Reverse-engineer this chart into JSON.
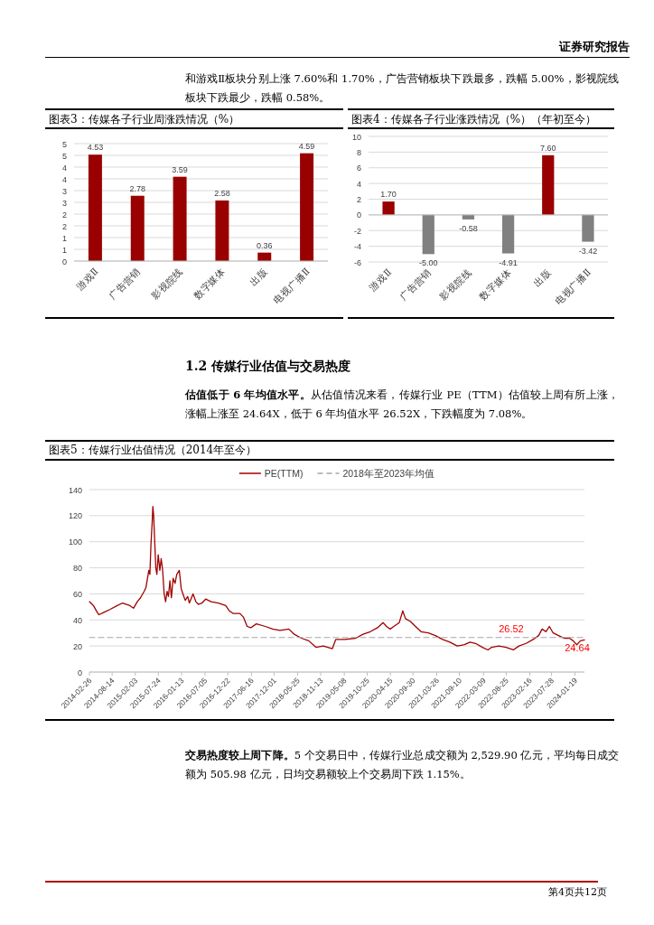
{
  "chart_data": [
    {
      "type": "bar",
      "title": "图表3：传媒各子行业周涨跌情况（%）",
      "categories": [
        "游戏Ⅱ",
        "广告营销",
        "影视院线",
        "数字媒体",
        "出版",
        "电视广播Ⅱ"
      ],
      "values": [
        4.53,
        2.78,
        3.59,
        2.58,
        0.36,
        4.59
      ],
      "value_labels": [
        "4.53",
        "2.78",
        "3.59",
        "2.58",
        "0.36",
        "4.59"
      ],
      "color": "#990000",
      "ylim": [
        0,
        5
      ],
      "yticks": [
        0,
        {
          "value": 0.5,
          "label": "1"
        },
        1,
        {
          "value": 1.5,
          "label": "2"
        },
        2,
        {
          "value": 2.5,
          "label": "3"
        },
        3,
        {
          "value": 3.5,
          "label": "4"
        },
        4,
        {
          "value": 4.5,
          "label": "5"
        },
        5
      ],
      "grid": "y",
      "annotations": [
        "证券研究报告",
        "和游戏Ⅱ板块分别上涨 7.60%和 1.70%，广告营销板块下跌最多，跌幅 5.00%，影视院线板块下跌最少，跌幅 0.58%。"
      ]
    },
    {
      "type": "bar",
      "title": "图表4：传媒各子行业涨跌情况（%）（年初至今）",
      "categories": [
        "游戏Ⅱ",
        "广告营销",
        "影视院线",
        "数字媒体",
        "出版",
        "电视广播Ⅱ"
      ],
      "values": [
        1.7,
        -5.0,
        -0.58,
        -4.91,
        7.6,
        -3.42
      ],
      "value_labels": [
        "1.70",
        "-5.00",
        "-0.58",
        "-4.91",
        "7.60",
        "-3.42"
      ],
      "colors": [
        "#990000",
        "#808080",
        "#808080",
        "#808080",
        "#990000",
        "#808080"
      ],
      "ylim": [
        -6,
        10
      ],
      "yticks": [
        -6,
        -4,
        -2,
        0,
        2,
        4,
        6,
        8,
        10
      ],
      "grid": "y"
    },
    {
      "type": "line",
      "title": "图表5：传媒行业估值情况（2014年至今）",
      "legend": "top",
      "grid": "y",
      "ylim": [
        0,
        140
      ],
      "yticks": [
        0,
        20,
        40,
        60,
        80,
        100,
        120,
        140
      ],
      "xlim": [
        "2014-02-26",
        "2024-03-29"
      ],
      "xticks": [
        "2014-02-26",
        "2014-08-14",
        "2015-02-03",
        "2015-07-24",
        "2016-01-13",
        "2016-07-05",
        "2016-12-22",
        "2017-06-16",
        "2017-12-01",
        "2018-05-25",
        "2018-11-13",
        "2019-05-08",
        "2019-10-25",
        "2020-04-15",
        "2020-09-30",
        "2021-03-26",
        "2021-09-10",
        "2022-03-09",
        "2022-08-25",
        "2023-02-16",
        "2023-07-28",
        "2024-01-19"
      ],
      "x": [
        "2014-02-26",
        "2014-03-28",
        "2014-04-24",
        "2014-05-08",
        "2014-06-17",
        "2014-07-28",
        "2014-09-21",
        "2014-10-31",
        "2014-12-24",
        "2015-01-20",
        "2015-02-17",
        "2015-03-13",
        "2015-04-10",
        "2015-04-23",
        "2015-05-14",
        "2015-05-22",
        "2015-05-30",
        "2015-06-08",
        "2015-06-13",
        "2015-06-19",
        "2015-06-27",
        "2015-07-05",
        "2015-07-13",
        "2015-07-23",
        "2015-08-04",
        "2015-08-14",
        "2015-08-25",
        "2015-09-05",
        "2015-09-16",
        "2015-09-27",
        "2015-10-07",
        "2015-10-18",
        "2015-10-29",
        "2015-11-11",
        "2015-11-25",
        "2015-12-08",
        "2015-12-27",
        "2016-01-10",
        "2016-01-23",
        "2016-02-09",
        "2016-02-27",
        "2016-03-11",
        "2016-04-07",
        "2016-04-28",
        "2016-05-17",
        "2016-06-13",
        "2016-07-10",
        "2016-08-20",
        "2016-10-13",
        "2016-12-06",
        "2017-01-02",
        "2017-01-29",
        "2017-03-22",
        "2017-04-18",
        "2017-05-15",
        "2017-06-11",
        "2017-07-22",
        "2017-09-28",
        "2017-11-21",
        "2018-01-14",
        "2018-03-21",
        "2018-04-30",
        "2018-06-23",
        "2018-08-16",
        "2018-10-09",
        "2018-12-02",
        "2019-02-08",
        "2019-03-05",
        "2019-05-12",
        "2019-08-01",
        "2019-09-24",
        "2019-11-17",
        "2020-01-10",
        "2020-02-20",
        "2020-03-17",
        "2020-04-13",
        "2020-05-10",
        "2020-06-20",
        "2020-07-16",
        "2020-08-05",
        "2020-09-09",
        "2020-10-19",
        "2020-11-29",
        "2021-01-22",
        "2021-03-16",
        "2021-05-09",
        "2021-07-02",
        "2021-08-25",
        "2021-10-18",
        "2021-11-28",
        "2022-01-08",
        "2022-03-01",
        "2022-04-11",
        "2022-05-08",
        "2022-07-01",
        "2022-08-24",
        "2022-10-17",
        "2022-11-27",
        "2023-01-20",
        "2023-03-13",
        "2023-04-23",
        "2023-05-19",
        "2023-06-16",
        "2023-07-12",
        "2023-08-09",
        "2023-09-19",
        "2023-10-29",
        "2023-12-08",
        "2024-01-05",
        "2024-02-01",
        "2024-02-28",
        "2024-03-29"
      ],
      "series": [
        {
          "name": "PE(TTM)",
          "color": "#a00000",
          "values": [
            54,
            51,
            46,
            44,
            46,
            48,
            51,
            53,
            51,
            49,
            54,
            57,
            62,
            65,
            78,
            75,
            98,
            115,
            127,
            120,
            100,
            80,
            75,
            90,
            78,
            87,
            78,
            60,
            54,
            62,
            58,
            70,
            57,
            72,
            68,
            75,
            78,
            64,
            60,
            55,
            58,
            53,
            60,
            54,
            52,
            53,
            56,
            54,
            53,
            51,
            47,
            45,
            45,
            42,
            35,
            34,
            37,
            35,
            33,
            32,
            33,
            29,
            26,
            24,
            19,
            20,
            18,
            25,
            25,
            26,
            29,
            31,
            34,
            38,
            35,
            33,
            35,
            38,
            47,
            41,
            39,
            35,
            31,
            30,
            28,
            25,
            23,
            20,
            21,
            23,
            22,
            19,
            17,
            19,
            20,
            19,
            17,
            20,
            22,
            25,
            28,
            33,
            31,
            35,
            30,
            28,
            26,
            26,
            24,
            21,
            24,
            24.64
          ]
        },
        {
          "name": "2018年至2023年均值",
          "color": "#a6a6a6",
          "x": [
            "2014-02-26",
            "2024-03-29"
          ],
          "values": [
            26.52,
            26.52
          ],
          "line_style": "dashed"
        }
      ],
      "annotations": [
        "1.2 传媒行业估值与交易热度",
        "估值低于 6 年均值水平。",
        "从估值情况来看，传媒行业 PE（TTM）估值较上周有所上涨，涨幅上涨至 24.64X，低于 6 年均值水平 26.52X，下跌幅度为 7.08%。",
        {
          "text": "26.52",
          "x": "2022-10-01",
          "y": 26.52
        },
        {
          "text": "24.64",
          "x": "2024-03-29",
          "y": 24.64
        },
        "交易热度较上周下降。",
        "5 个交易日中，传媒行业总成交额为 2,529.90 亿元，平均每日成交额为 505.98 亿元，日均交易额较上个交易周下跌 1.15%。",
        "第4页共12页"
      ]
    }
  ]
}
